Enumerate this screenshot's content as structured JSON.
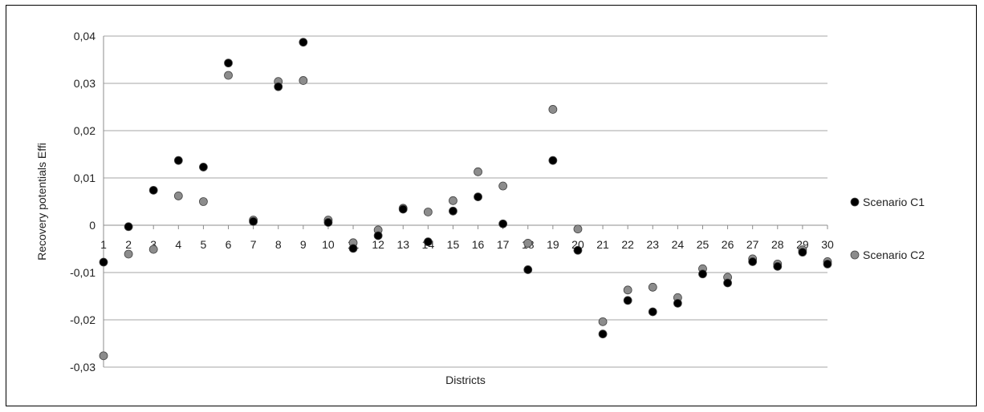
{
  "chart_data": {
    "type": "scatter",
    "title": "",
    "xlabel": "Districts",
    "ylabel": "Recovery potentials Effi",
    "ylim": [
      -0.03,
      0.04
    ],
    "yticks": [
      "-0,03",
      "-0,02",
      "-0,01",
      "0",
      "0,01",
      "0,02",
      "0,03",
      "0,04"
    ],
    "ytick_values": [
      -0.03,
      -0.02,
      -0.01,
      0,
      0.01,
      0.02,
      0.03,
      0.04
    ],
    "grid": true,
    "legend_position": "right",
    "categories": [
      "1",
      "2",
      "3",
      "4",
      "5",
      "6",
      "7",
      "8",
      "9",
      "10",
      "11",
      "12",
      "13",
      "14",
      "15",
      "16",
      "17",
      "18",
      "19",
      "20",
      "21",
      "22",
      "23",
      "24",
      "25",
      "26",
      "27",
      "28",
      "29",
      "30"
    ],
    "series": [
      {
        "name": "Scenario C1",
        "color": "#000000",
        "values": [
          -0.0078,
          -0.0003,
          0.0074,
          0.0137,
          0.0123,
          0.0343,
          0.0008,
          0.0293,
          0.0387,
          0.0006,
          -0.0049,
          -0.0022,
          0.0034,
          -0.0035,
          0.003,
          0.006,
          0.0003,
          -0.0094,
          0.0137,
          -0.0053,
          -0.023,
          -0.0159,
          -0.0183,
          -0.0165,
          -0.0103,
          -0.0122,
          -0.0077,
          -0.0087,
          -0.0057,
          -0.0082
        ]
      },
      {
        "name": "Scenario C2",
        "color": "#8c8c8c",
        "values": [
          -0.0276,
          -0.0061,
          -0.0051,
          0.0062,
          0.005,
          0.0317,
          0.0011,
          0.0304,
          0.0306,
          0.0011,
          -0.0037,
          -0.001,
          0.0036,
          0.0028,
          0.0052,
          0.0113,
          0.0083,
          -0.0038,
          0.0245,
          -0.0008,
          -0.0204,
          -0.0137,
          -0.0131,
          -0.0153,
          -0.0092,
          -0.011,
          -0.0071,
          -0.0082,
          -0.0052,
          -0.0077
        ]
      }
    ]
  }
}
